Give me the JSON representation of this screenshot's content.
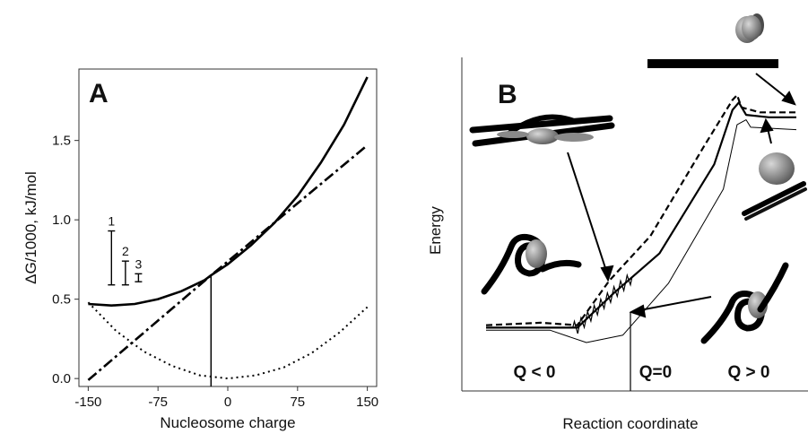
{
  "chart_data": [
    {
      "type": "line",
      "panel_label": "A",
      "xlabel": "Nucleosome charge",
      "ylabel": "ΔG/1000, kJ/mol",
      "xlim": [
        -160,
        160
      ],
      "ylim": [
        -0.05,
        1.95
      ],
      "xticks": [
        "-150",
        "-75",
        "0",
        "75",
        "150"
      ],
      "yticks": [
        "0.0",
        "0.5",
        "1.0",
        "1.5"
      ],
      "grid": false,
      "legend": "none",
      "series": [
        {
          "style": "solid",
          "x": [
            -150,
            -125,
            -100,
            -75,
            -50,
            -25,
            -18,
            0,
            25,
            50,
            75,
            100,
            125,
            150
          ],
          "y": [
            0.47,
            0.46,
            0.47,
            0.5,
            0.55,
            0.62,
            0.65,
            0.72,
            0.84,
            0.98,
            1.15,
            1.36,
            1.6,
            1.9
          ]
        },
        {
          "style": "dash-dot",
          "x": [
            -150,
            -18,
            150
          ],
          "y": [
            -0.01,
            0.65,
            1.47
          ]
        },
        {
          "style": "dotted",
          "x": [
            -150,
            -120,
            -90,
            -60,
            -30,
            0,
            30,
            60,
            90,
            120,
            150
          ],
          "y": [
            0.48,
            0.3,
            0.17,
            0.08,
            0.02,
            0.0,
            0.02,
            0.07,
            0.16,
            0.29,
            0.45
          ]
        }
      ],
      "marker_line": {
        "x": -18,
        "y": [
          -0.05,
          0.65
        ]
      },
      "error_bars": [
        {
          "label": "1",
          "x": -125,
          "low": 0.59,
          "high": 0.93
        },
        {
          "label": "2",
          "x": -110,
          "low": 0.59,
          "high": 0.74
        },
        {
          "label": "3",
          "x": -96,
          "low": 0.61,
          "high": 0.66
        }
      ]
    },
    {
      "type": "line",
      "panel_label": "B",
      "xlabel": "Reaction coordinate",
      "ylabel": "Energy",
      "region_labels": [
        "Q < 0",
        "Q=0",
        "Q > 0"
      ],
      "series": [
        {
          "style": "dashed",
          "x": [
            0,
            60,
            100,
            135,
            180,
            240,
            270,
            275,
            280,
            300,
            340
          ],
          "y": [
            0.07,
            0.08,
            0.07,
            0.25,
            0.43,
            0.8,
            0.98,
            1.0,
            0.95,
            0.93,
            0.93
          ]
        },
        {
          "style": "solid",
          "x": [
            0,
            90,
            100,
            140,
            190,
            250,
            270,
            277,
            285,
            310,
            340
          ],
          "y": [
            0.06,
            0.06,
            0.06,
            0.2,
            0.36,
            0.72,
            0.94,
            0.97,
            0.92,
            0.91,
            0.91
          ]
        },
        {
          "style": "thin",
          "x": [
            0,
            70,
            110,
            150,
            200,
            260,
            275,
            285,
            290,
            340
          ],
          "y": [
            0.05,
            0.05,
            0.0,
            0.03,
            0.24,
            0.62,
            0.88,
            0.9,
            0.87,
            0.86
          ]
        }
      ]
    }
  ]
}
